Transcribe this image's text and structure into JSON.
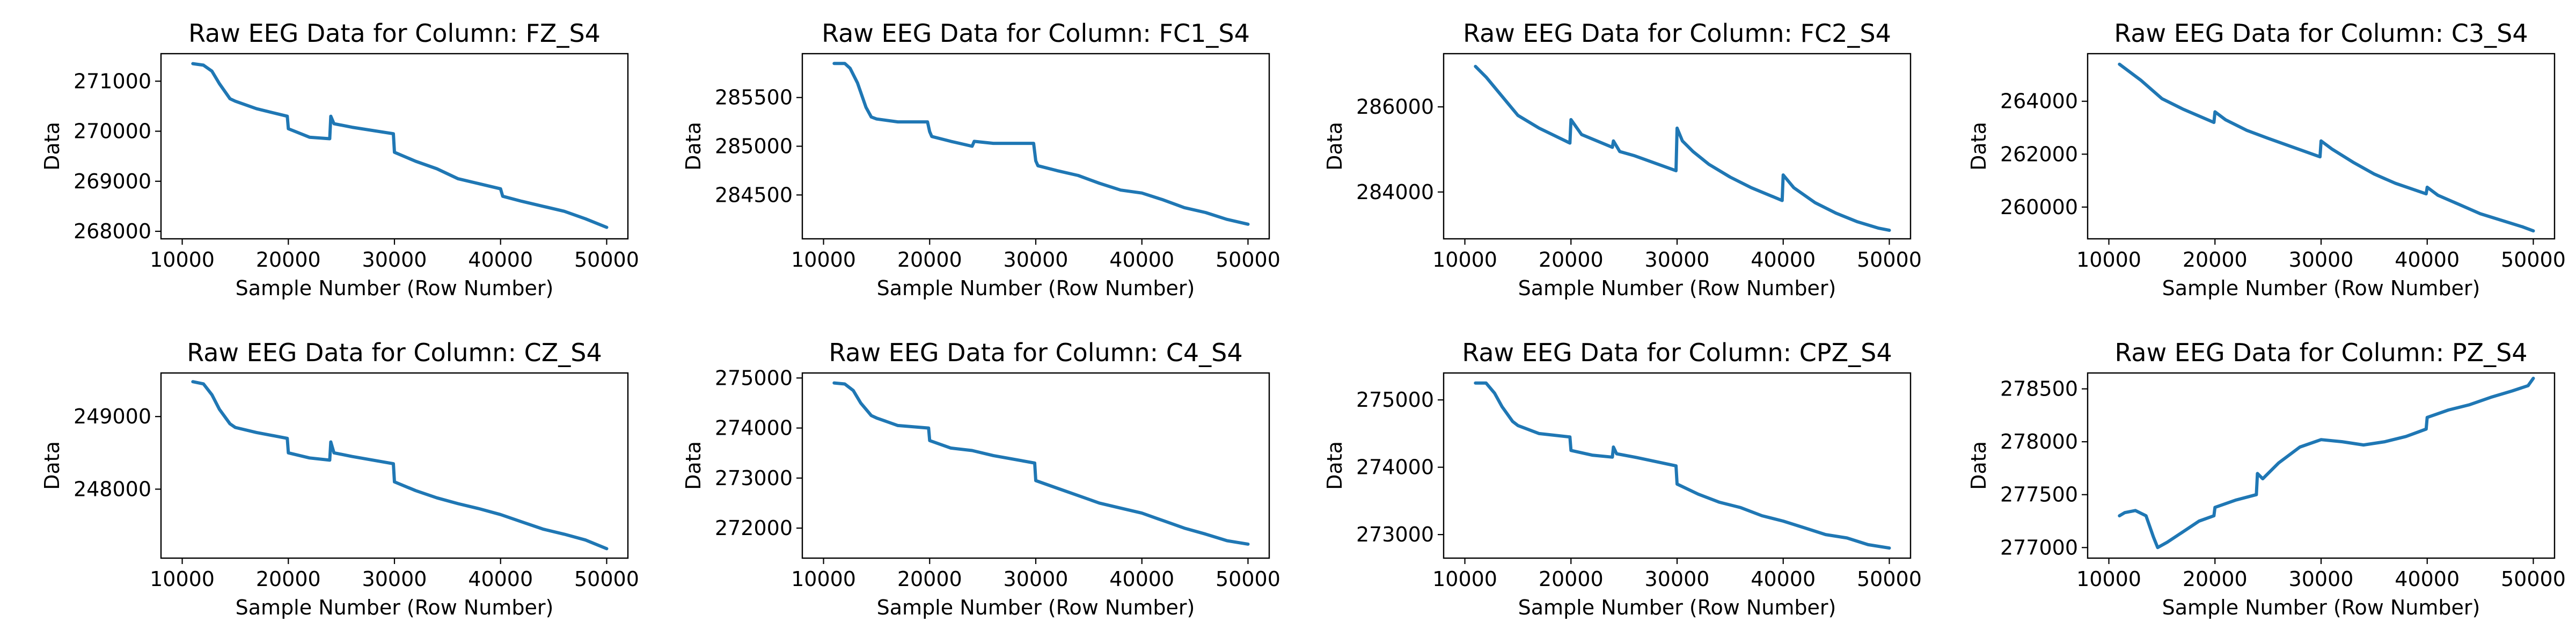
{
  "chart_data": [
    {
      "type": "line",
      "title": "Raw EEG Data for Column: FZ_S4",
      "xlabel": "Sample Number (Row Number)",
      "ylabel": "Data",
      "xlim": [
        8000,
        52000
      ],
      "ylim": [
        267850,
        271550
      ],
      "xticks": [
        10000,
        20000,
        30000,
        40000,
        50000
      ],
      "yticks": [
        268000,
        269000,
        270000,
        271000
      ],
      "color": "#1f77b4",
      "series": [
        {
          "x": [
            11000,
            12000,
            12800,
            13500,
            14500,
            15000,
            17000,
            19900,
            20000,
            22000,
            23900,
            24000,
            24300,
            26000,
            29900,
            30000,
            32000,
            34000,
            36000,
            38000,
            40000,
            40200,
            42000,
            44000,
            46000,
            48000,
            50000
          ],
          "y": [
            271350,
            271320,
            271200,
            270950,
            270650,
            270600,
            270450,
            270300,
            270050,
            269880,
            269850,
            270300,
            270150,
            270080,
            269950,
            269580,
            269400,
            269250,
            269050,
            268950,
            268850,
            268700,
            268600,
            268500,
            268400,
            268250,
            268080
          ]
        }
      ]
    },
    {
      "type": "line",
      "title": "Raw EEG Data for Column: FC1_S4",
      "xlabel": "Sample Number (Row Number)",
      "ylabel": "Data",
      "xlim": [
        8000,
        52000
      ],
      "ylim": [
        284050,
        285950
      ],
      "xticks": [
        10000,
        20000,
        30000,
        40000,
        50000
      ],
      "yticks": [
        284500,
        285000,
        285500
      ],
      "color": "#1f77b4",
      "series": [
        {
          "x": [
            11000,
            12000,
            12500,
            13200,
            14000,
            14500,
            15000,
            17000,
            19800,
            20000,
            20200,
            22000,
            24000,
            24200,
            26000,
            29800,
            30000,
            30200,
            32000,
            34000,
            36000,
            38000,
            40000,
            42000,
            44000,
            46000,
            48000,
            50000
          ],
          "y": [
            285850,
            285850,
            285800,
            285650,
            285400,
            285300,
            285280,
            285250,
            285250,
            285150,
            285100,
            285050,
            285000,
            285050,
            285030,
            285030,
            284850,
            284800,
            284750,
            284700,
            284620,
            284550,
            284520,
            284450,
            284370,
            284320,
            284250,
            284200
          ]
        }
      ]
    },
    {
      "type": "line",
      "title": "Raw EEG Data for Column: FC2_S4",
      "xlabel": "Sample Number (Row Number)",
      "ylabel": "Data",
      "xlim": [
        8000,
        52000
      ],
      "ylim": [
        282900,
        287250
      ],
      "xticks": [
        10000,
        20000,
        30000,
        40000,
        50000
      ],
      "yticks": [
        284000,
        286000
      ],
      "color": "#1f77b4",
      "series": [
        {
          "x": [
            11000,
            12000,
            13000,
            14000,
            15000,
            17000,
            19900,
            20000,
            21000,
            23900,
            24000,
            24600,
            26000,
            29900,
            30000,
            30500,
            31500,
            33000,
            35000,
            37000,
            39900,
            40000,
            41000,
            43000,
            45000,
            47000,
            49000,
            50000
          ],
          "y": [
            286950,
            286700,
            286400,
            286100,
            285800,
            285500,
            285150,
            285700,
            285350,
            285050,
            285200,
            284950,
            284850,
            284500,
            285500,
            285200,
            284950,
            284650,
            284350,
            284100,
            283800,
            284400,
            284100,
            283750,
            283500,
            283300,
            283150,
            283100
          ]
        }
      ]
    },
    {
      "type": "line",
      "title": "Raw EEG Data for Column: C3_S4",
      "xlabel": "Sample Number (Row Number)",
      "ylabel": "Data",
      "xlim": [
        8000,
        52000
      ],
      "ylim": [
        258800,
        265800
      ],
      "xticks": [
        10000,
        20000,
        30000,
        40000,
        50000
      ],
      "yticks": [
        260000,
        262000,
        264000
      ],
      "color": "#1f77b4",
      "series": [
        {
          "x": [
            11000,
            12000,
            13000,
            14000,
            15000,
            17000,
            19900,
            20000,
            21000,
            23000,
            25000,
            29900,
            30000,
            31000,
            33000,
            35000,
            37000,
            39900,
            40000,
            41000,
            43000,
            45000,
            47000,
            49000,
            50000
          ],
          "y": [
            265400,
            265100,
            264800,
            264450,
            264100,
            263700,
            263200,
            263600,
            263300,
            262900,
            262600,
            261900,
            262500,
            262200,
            261700,
            261250,
            260900,
            260500,
            260750,
            260450,
            260100,
            259750,
            259500,
            259250,
            259100
          ]
        }
      ]
    },
    {
      "type": "line",
      "title": "Raw EEG Data for Column: CZ_S4",
      "xlabel": "Sample Number (Row Number)",
      "ylabel": "Data",
      "xlim": [
        8000,
        52000
      ],
      "ylim": [
        247050,
        249600
      ],
      "xticks": [
        10000,
        20000,
        30000,
        40000,
        50000
      ],
      "yticks": [
        248000,
        249000
      ],
      "color": "#1f77b4",
      "series": [
        {
          "x": [
            11000,
            12000,
            12800,
            13500,
            14500,
            15000,
            17000,
            19900,
            20000,
            22000,
            23900,
            24000,
            24300,
            26000,
            29900,
            30000,
            32000,
            34000,
            36000,
            38000,
            40000,
            42000,
            44000,
            46000,
            48000,
            50000
          ],
          "y": [
            249480,
            249450,
            249300,
            249100,
            248900,
            248850,
            248780,
            248700,
            248500,
            248430,
            248400,
            248650,
            248500,
            248450,
            248350,
            248100,
            247980,
            247880,
            247800,
            247730,
            247650,
            247550,
            247450,
            247380,
            247300,
            247180
          ]
        }
      ]
    },
    {
      "type": "line",
      "title": "Raw EEG Data for Column: C4_S4",
      "xlabel": "Sample Number (Row Number)",
      "ylabel": "Data",
      "xlim": [
        8000,
        52000
      ],
      "ylim": [
        271400,
        275100
      ],
      "xticks": [
        10000,
        20000,
        30000,
        40000,
        50000
      ],
      "yticks": [
        272000,
        273000,
        274000,
        275000
      ],
      "color": "#1f77b4",
      "series": [
        {
          "x": [
            11000,
            12000,
            12800,
            13500,
            14500,
            15000,
            17000,
            19900,
            20000,
            22000,
            24000,
            26000,
            29900,
            30000,
            32000,
            34000,
            36000,
            38000,
            40000,
            42000,
            44000,
            46000,
            48000,
            50000
          ],
          "y": [
            274900,
            274880,
            274750,
            274500,
            274250,
            274200,
            274050,
            274000,
            273750,
            273600,
            273550,
            273450,
            273300,
            272950,
            272800,
            272650,
            272500,
            272400,
            272300,
            272150,
            272000,
            271880,
            271750,
            271680
          ]
        }
      ]
    },
    {
      "type": "line",
      "title": "Raw EEG Data for Column: CPZ_S4",
      "xlabel": "Sample Number (Row Number)",
      "ylabel": "Data",
      "xlim": [
        8000,
        52000
      ],
      "ylim": [
        272650,
        275400
      ],
      "xticks": [
        10000,
        20000,
        30000,
        40000,
        50000
      ],
      "yticks": [
        273000,
        274000,
        275000
      ],
      "color": "#1f77b4",
      "series": [
        {
          "x": [
            11000,
            12000,
            12800,
            13500,
            14500,
            15000,
            17000,
            19900,
            20000,
            22000,
            23900,
            24000,
            24300,
            26000,
            29900,
            30000,
            32000,
            34000,
            36000,
            38000,
            40000,
            42000,
            44000,
            46000,
            48000,
            50000
          ],
          "y": [
            275250,
            275250,
            275100,
            274900,
            274680,
            274620,
            274500,
            274450,
            274250,
            274180,
            274150,
            274300,
            274200,
            274150,
            274020,
            273750,
            273600,
            273480,
            273400,
            273280,
            273200,
            273100,
            273000,
            272950,
            272850,
            272800
          ]
        }
      ]
    },
    {
      "type": "line",
      "title": "Raw EEG Data for Column: PZ_S4",
      "xlabel": "Sample Number (Row Number)",
      "ylabel": "Data",
      "xlim": [
        8000,
        52000
      ],
      "ylim": [
        276900,
        278650
      ],
      "xticks": [
        10000,
        20000,
        30000,
        40000,
        50000
      ],
      "yticks": [
        277000,
        277500,
        278000,
        278500
      ],
      "color": "#1f77b4",
      "series": [
        {
          "x": [
            11000,
            11500,
            12500,
            13500,
            14200,
            14600,
            15500,
            17000,
            18500,
            19900,
            20000,
            22000,
            23900,
            24000,
            24500,
            26000,
            28000,
            30000,
            32000,
            34000,
            36000,
            38000,
            39900,
            40000,
            42000,
            44000,
            46000,
            48000,
            49500,
            50000
          ],
          "y": [
            277300,
            277330,
            277350,
            277300,
            277100,
            277000,
            277050,
            277150,
            277250,
            277300,
            277380,
            277450,
            277500,
            277700,
            277650,
            277800,
            277950,
            278020,
            278000,
            277970,
            278000,
            278050,
            278120,
            278230,
            278300,
            278350,
            278420,
            278480,
            278530,
            278600
          ]
        }
      ]
    }
  ]
}
